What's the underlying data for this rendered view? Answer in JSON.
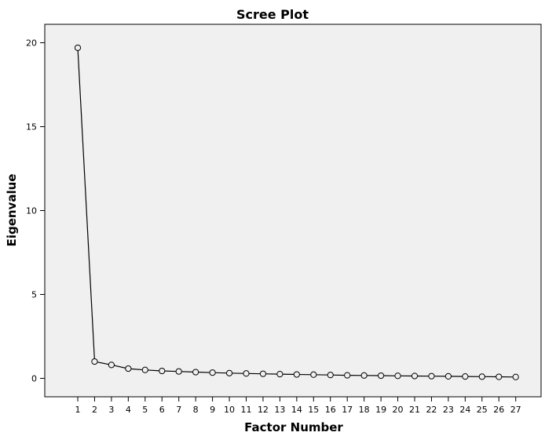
{
  "chart_data": {
    "type": "line",
    "title": "Scree Plot",
    "xlabel": "Factor Number",
    "ylabel": "Eigenvalue",
    "x": [
      1,
      2,
      3,
      4,
      5,
      6,
      7,
      8,
      9,
      10,
      11,
      12,
      13,
      14,
      15,
      16,
      17,
      18,
      19,
      20,
      21,
      22,
      23,
      24,
      25,
      26,
      27
    ],
    "series": [
      {
        "values": [
          19.7,
          1.0,
          0.8,
          0.58,
          0.5,
          0.44,
          0.41,
          0.37,
          0.34,
          0.31,
          0.29,
          0.27,
          0.25,
          0.23,
          0.22,
          0.2,
          0.18,
          0.17,
          0.16,
          0.15,
          0.14,
          0.13,
          0.12,
          0.11,
          0.1,
          0.09,
          0.08
        ]
      }
    ],
    "ylim": [
      -1.1,
      21.1
    ],
    "yticks": [
      0,
      5,
      10,
      15,
      20
    ],
    "grid": false,
    "colors": {
      "plot_background": "#f0f0f0",
      "line": "#000000",
      "marker_fill": "#f0f0f0"
    }
  }
}
